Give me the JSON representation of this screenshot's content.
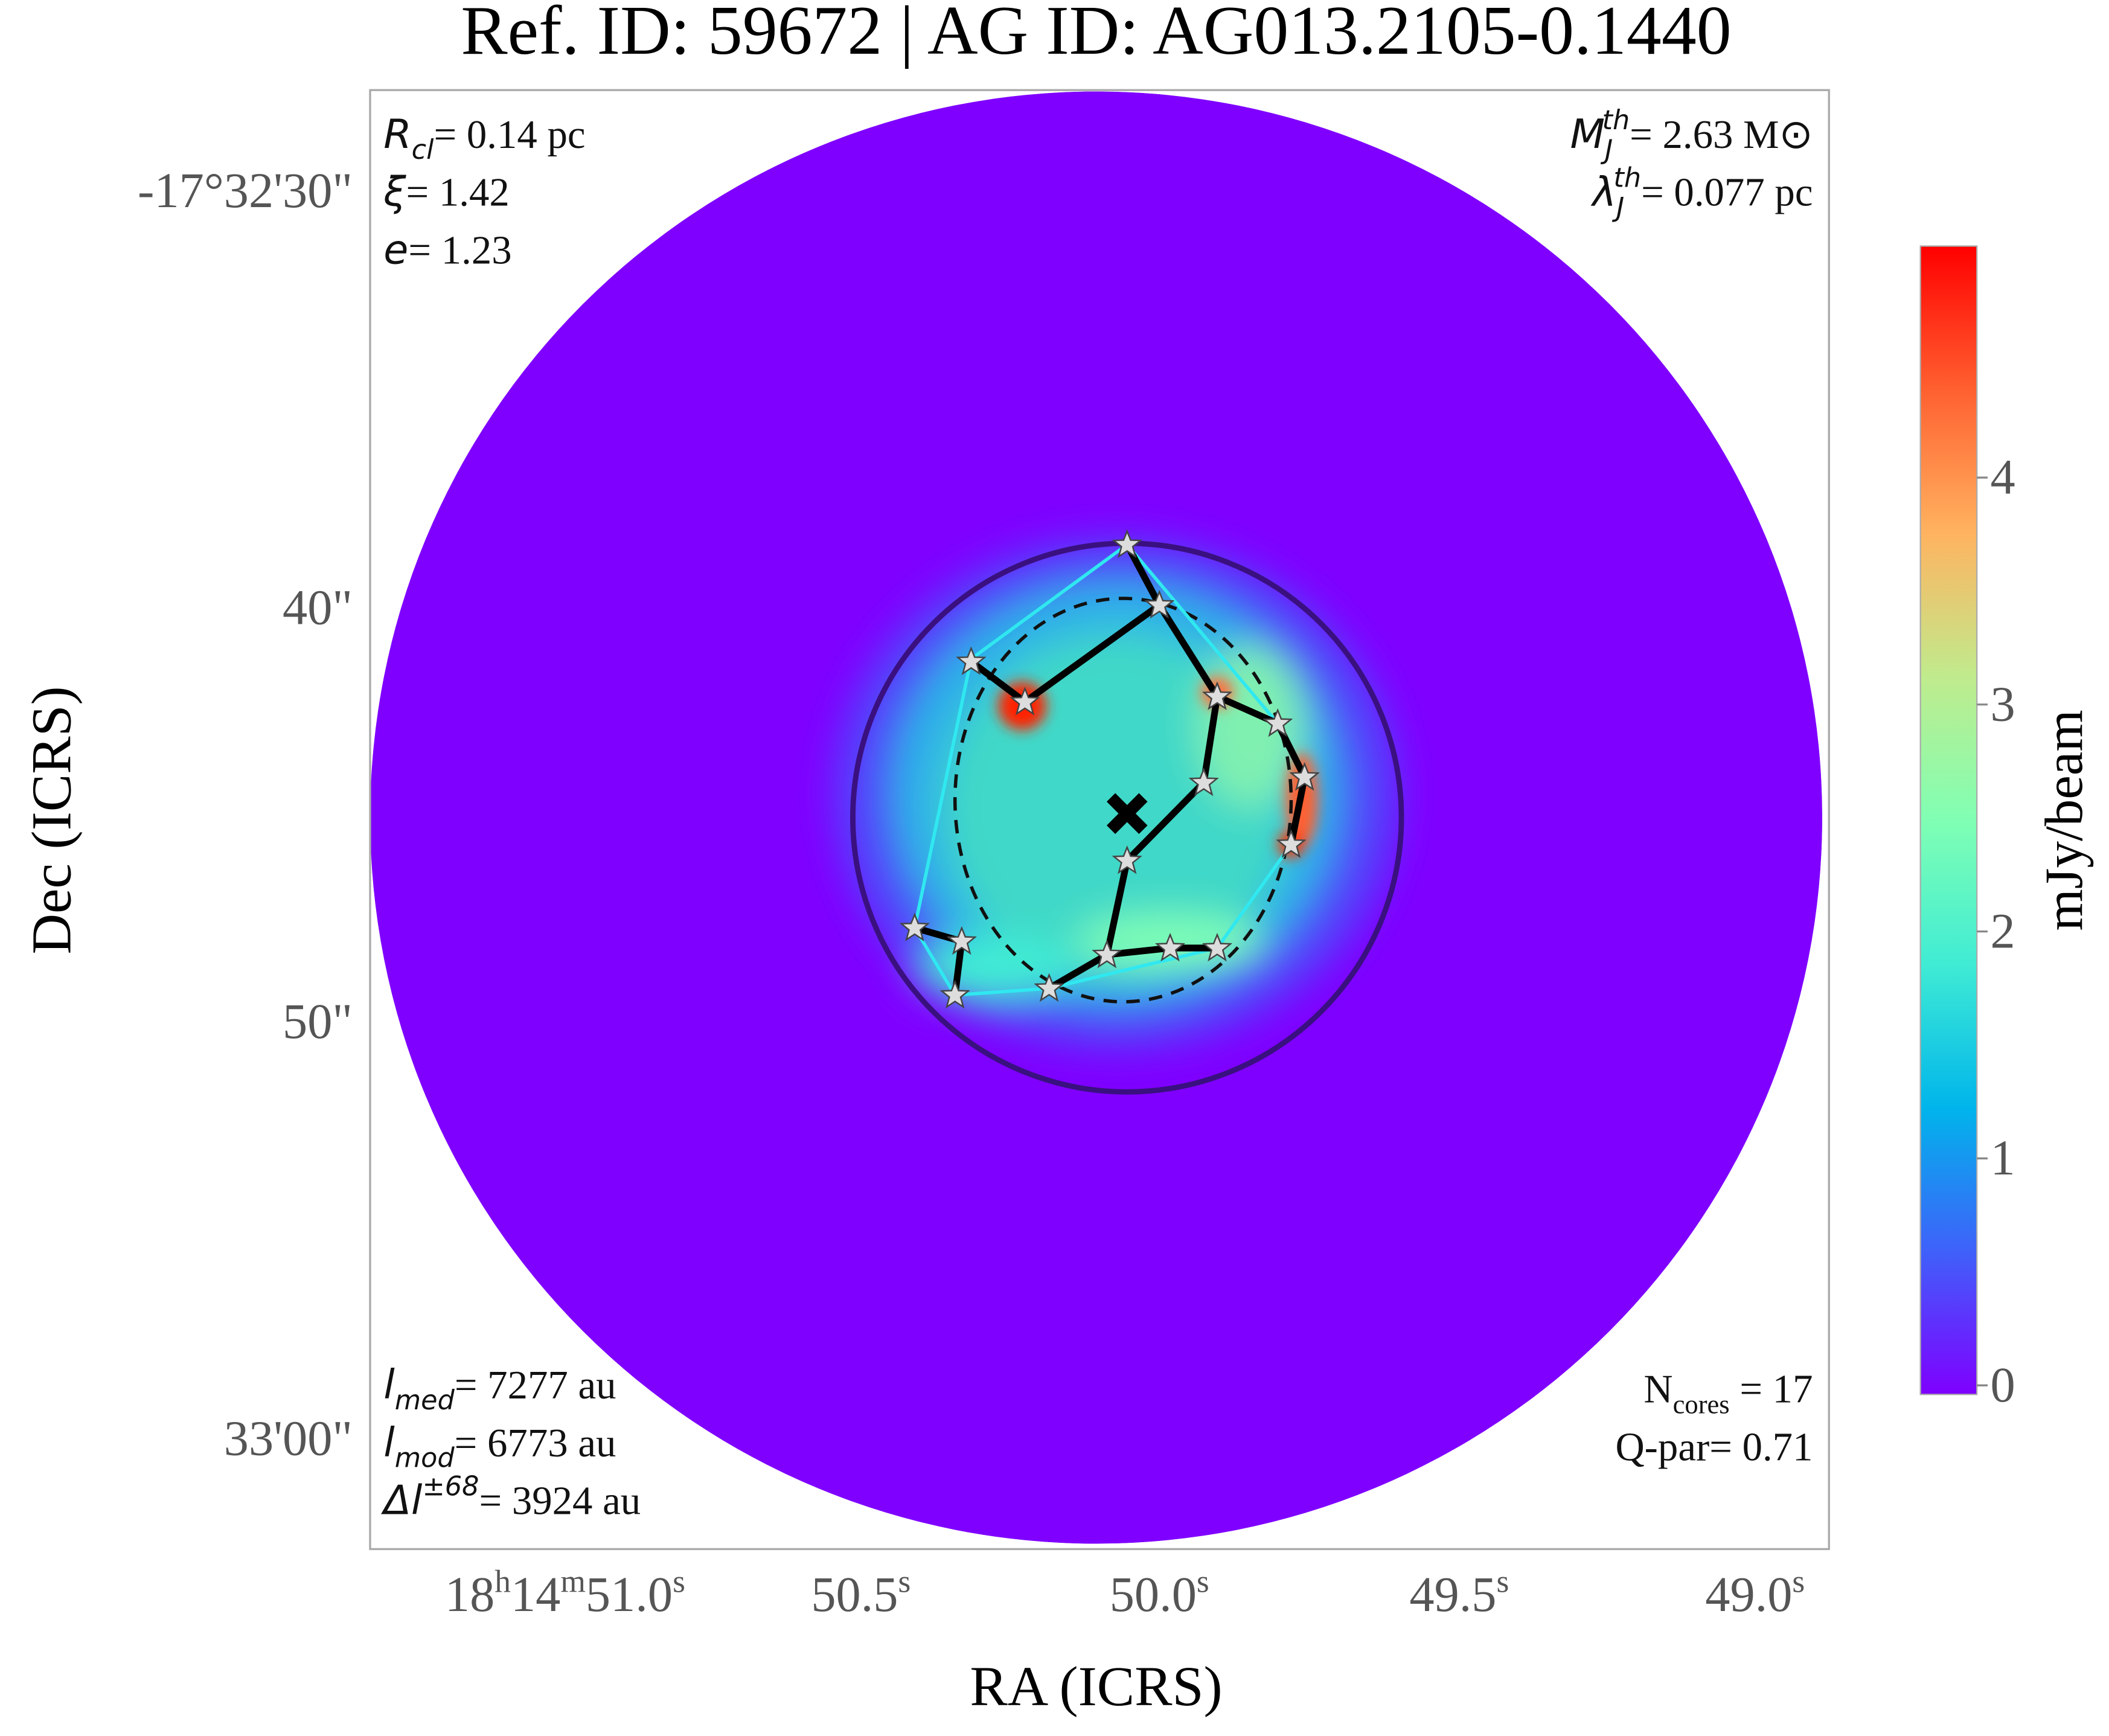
{
  "chart_data": {
    "type": "image",
    "title": "Ref. ID: 59672 | AG ID: AG013.2105-0.1440",
    "xlabel": "RA (ICRS)",
    "ylabel": "Dec (ICRS)",
    "xticklabels": [
      [
        "18",
        "h",
        "14",
        "m",
        "51.0",
        "s"
      ],
      [
        "50.5",
        "s"
      ],
      [
        "50.0",
        "s"
      ],
      [
        "49.5",
        "s"
      ],
      [
        "49.0",
        "s"
      ]
    ],
    "yticklabels": [
      "-17°32'30\"",
      "40\"",
      "50\"",
      "33'00\""
    ],
    "annotations_top_left": [
      {
        "main": "R",
        "sub": "cl",
        "rest": "= 0.14 pc"
      },
      {
        "main": "ξ",
        "rest": "= 1.42"
      },
      {
        "main": "e",
        "rest": "= 1.23"
      }
    ],
    "annotations_top_right": [
      {
        "main": "M",
        "sub": "J",
        "sup": "th",
        "rest": "= 2.63 M⊙"
      },
      {
        "main": "λ",
        "sub": "J",
        "sup": "th",
        "rest": "= 0.077 pc"
      }
    ],
    "annotations_bottom_left": [
      {
        "main": "l",
        "sub": "med",
        "rest": "= 7277 au"
      },
      {
        "main": "l",
        "sub": "mod",
        "rest": "= 6773 au"
      },
      {
        "main": "Δl",
        "sup": "±68",
        "rest": "= 3924 au"
      }
    ],
    "annotations_bottom_right": [
      {
        "plain": "N",
        "sub": "cores",
        "rest": " = 17"
      },
      {
        "plain": "Q-par= 0.71"
      }
    ],
    "colorbar": {
      "label": "mJy/beam",
      "lim": [
        -0.04,
        5.02
      ],
      "ticks": [
        0,
        1,
        2,
        3,
        4
      ],
      "colormap": [
        "#7f00ff",
        "#3f61fa",
        "#00b5eb",
        "#40ecd4",
        "#80ffb4",
        "#c0eb8d",
        "#ffb360",
        "#ff6030",
        "#ff0000"
      ]
    }
  }
}
